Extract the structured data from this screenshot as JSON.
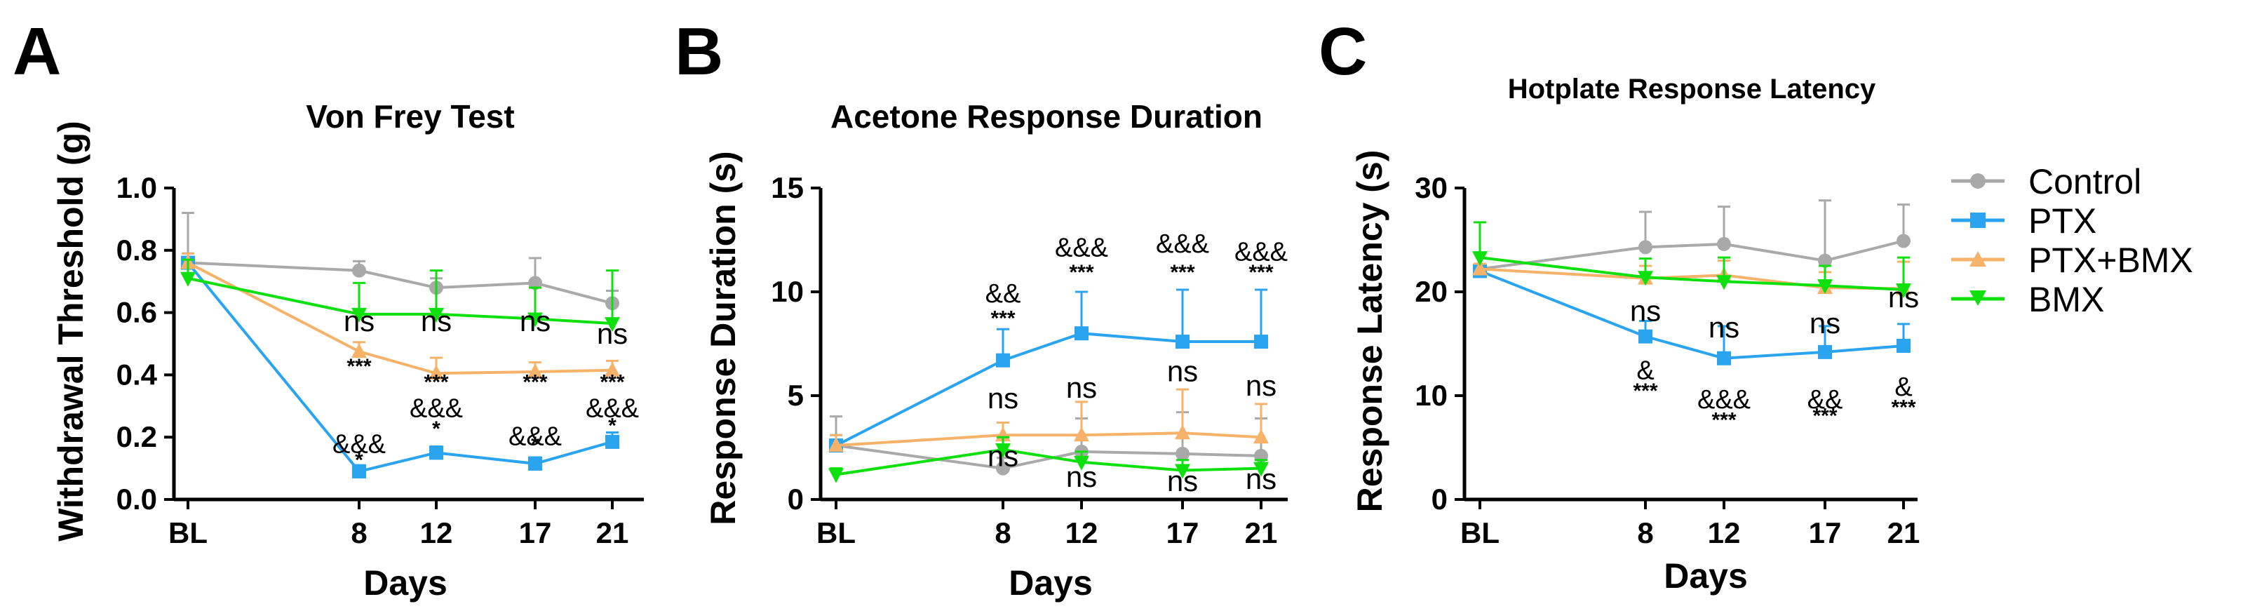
{
  "legend": {
    "entries": [
      {
        "name": "Control",
        "color": "#a9a9a9",
        "marker": "circle"
      },
      {
        "name": "PTX",
        "color": "#2ba4f0",
        "marker": "square"
      },
      {
        "name": "PTX+BMX",
        "color": "#f7b26a",
        "marker": "triangle-up"
      },
      {
        "name": "BMX",
        "color": "#0de00d",
        "marker": "triangle-down"
      }
    ]
  },
  "chart_data": [
    {
      "panel": "A",
      "type": "line",
      "title": "Von Frey Test",
      "xlabel": "Days",
      "ylabel": "Withdrawal Threshold (g)",
      "x": [
        0,
        8,
        12,
        17,
        21
      ],
      "x_tick_labels": [
        "BL",
        "8",
        "12",
        "17",
        "21"
      ],
      "ylim": [
        0,
        1.0
      ],
      "y_ticks": [
        0.0,
        0.2,
        0.4,
        0.6,
        0.8,
        1.0
      ],
      "y_tick_labels": [
        "0.0",
        "0.2",
        "0.4",
        "0.6",
        "0.8",
        "1.0"
      ],
      "series": [
        {
          "name": "Control",
          "values": [
            0.76,
            0.735,
            0.68,
            0.695,
            0.63
          ],
          "errors": [
            0.16,
            0.03,
            0.03,
            0.08,
            0.04
          ]
        },
        {
          "name": "PTX",
          "values": [
            0.76,
            0.09,
            0.15,
            0.115,
            0.185
          ],
          "errors": [
            0.03,
            0.02,
            0.02,
            0.02,
            0.03
          ]
        },
        {
          "name": "PTX+BMX",
          "values": [
            0.76,
            0.475,
            0.405,
            0.41,
            0.415
          ],
          "errors": [
            0.03,
            0.03,
            0.05,
            0.03,
            0.03
          ]
        },
        {
          "name": "BMX",
          "values": [
            0.71,
            0.595,
            0.595,
            0.58,
            0.565
          ],
          "errors": [
            0.06,
            0.1,
            0.14,
            0.1,
            0.17
          ]
        }
      ],
      "annotations": [
        {
          "text": "ns",
          "x": 8,
          "y": 0.54,
          "size": "l"
        },
        {
          "text": "ns",
          "x": 12,
          "y": 0.54,
          "size": "l"
        },
        {
          "text": "ns",
          "x": 17,
          "y": 0.54,
          "size": "l"
        },
        {
          "text": "ns",
          "x": 21,
          "y": 0.5,
          "size": "l"
        },
        {
          "text": "***",
          "x": 8,
          "y": 0.405,
          "size": "s"
        },
        {
          "text": "***",
          "x": 12,
          "y": 0.355,
          "size": "s"
        },
        {
          "text": "***",
          "x": 17,
          "y": 0.355,
          "size": "s"
        },
        {
          "text": "***",
          "x": 21,
          "y": 0.355,
          "size": "s"
        },
        {
          "text": "&&&",
          "x": 12,
          "y": 0.265,
          "size": "m"
        },
        {
          "text": "&&&",
          "x": 21,
          "y": 0.265,
          "size": "m"
        },
        {
          "text": "&&&",
          "x": 8,
          "y": 0.15,
          "size": "m"
        },
        {
          "text": "&&&",
          "x": 17,
          "y": 0.175,
          "size": "m"
        },
        {
          "text": "*",
          "x": 8,
          "y": 0.105,
          "size": "s"
        },
        {
          "text": "*",
          "x": 12,
          "y": 0.205,
          "size": "s"
        },
        {
          "text": "*",
          "x": 17,
          "y": 0.155,
          "size": "s"
        },
        {
          "text": "*",
          "x": 21,
          "y": 0.215,
          "size": "s"
        }
      ]
    },
    {
      "panel": "B",
      "type": "line",
      "title": "Acetone Response Duration",
      "xlabel": "Days",
      "ylabel": "Response Duration (s)",
      "x": [
        0,
        8,
        12,
        17,
        21
      ],
      "x_tick_labels": [
        "BL",
        "8",
        "12",
        "17",
        "21"
      ],
      "ylim": [
        0,
        15
      ],
      "y_ticks": [
        0,
        5,
        10,
        15
      ],
      "y_tick_labels": [
        "0",
        "5",
        "10",
        "15"
      ],
      "series": [
        {
          "name": "Control",
          "values": [
            2.6,
            1.5,
            2.3,
            2.2,
            2.1
          ],
          "errors": [
            1.4,
            0.5,
            1.6,
            2.0,
            1.8
          ]
        },
        {
          "name": "PTX",
          "values": [
            2.6,
            6.7,
            8.0,
            7.6,
            7.6
          ],
          "errors": [
            0.5,
            1.5,
            2.0,
            2.5,
            2.5
          ]
        },
        {
          "name": "PTX+BMX",
          "values": [
            2.6,
            3.1,
            3.1,
            3.2,
            3.0
          ],
          "errors": [
            0.5,
            0.6,
            1.6,
            2.1,
            1.6
          ]
        },
        {
          "name": "BMX",
          "values": [
            1.2,
            2.4,
            1.8,
            1.4,
            1.5
          ],
          "errors": [
            0.3,
            0.6,
            0.5,
            0.5,
            0.4
          ]
        }
      ],
      "annotations": [
        {
          "text": "&&",
          "x": 8,
          "y": 9.5,
          "size": "m"
        },
        {
          "text": "***",
          "x": 8,
          "y": 8.4,
          "size": "s"
        },
        {
          "text": "&&&",
          "x": 12,
          "y": 11.7,
          "size": "m"
        },
        {
          "text": "***",
          "x": 12,
          "y": 10.6,
          "size": "s"
        },
        {
          "text": "&&&",
          "x": 17,
          "y": 11.9,
          "size": "m"
        },
        {
          "text": "***",
          "x": 17,
          "y": 10.6,
          "size": "s"
        },
        {
          "text": "&&&",
          "x": 21,
          "y": 11.5,
          "size": "m"
        },
        {
          "text": "***",
          "x": 21,
          "y": 10.6,
          "size": "s"
        },
        {
          "text": "ns",
          "x": 8,
          "y": 4.4,
          "size": "l"
        },
        {
          "text": "ns",
          "x": 12,
          "y": 4.9,
          "size": "l"
        },
        {
          "text": "ns",
          "x": 17,
          "y": 5.7,
          "size": "l"
        },
        {
          "text": "ns",
          "x": 21,
          "y": 5.0,
          "size": "l"
        },
        {
          "text": "ns",
          "x": 8,
          "y": 1.6,
          "size": "l"
        },
        {
          "text": "ns",
          "x": 12,
          "y": 0.6,
          "size": "l"
        },
        {
          "text": "ns",
          "x": 17,
          "y": 0.4,
          "size": "l"
        },
        {
          "text": "ns",
          "x": 21,
          "y": 0.5,
          "size": "l"
        }
      ]
    },
    {
      "panel": "C",
      "type": "line",
      "title": "Hotplate Response Latency",
      "xlabel": "Days",
      "ylabel": "Response Latency (s)",
      "x": [
        0,
        8,
        12,
        17,
        21
      ],
      "x_tick_labels": [
        "BL",
        "8",
        "12",
        "17",
        "21"
      ],
      "ylim": [
        0,
        30
      ],
      "y_ticks": [
        0,
        10,
        20,
        30
      ],
      "y_tick_labels": [
        "0",
        "10",
        "20",
        "30"
      ],
      "series": [
        {
          "name": "Control",
          "values": [
            22.2,
            24.3,
            24.6,
            23.0,
            24.9
          ],
          "errors": [
            0.5,
            3.4,
            3.6,
            5.8,
            3.5
          ]
        },
        {
          "name": "PTX",
          "values": [
            22.0,
            15.7,
            13.6,
            14.2,
            14.8
          ],
          "errors": [
            0.5,
            1.5,
            3.1,
            2.5,
            2.1
          ]
        },
        {
          "name": "PTX+BMX",
          "values": [
            22.2,
            21.3,
            21.6,
            20.4,
            20.3
          ],
          "errors": [
            0.5,
            1.2,
            1.4,
            1.5,
            2.6
          ]
        },
        {
          "name": "BMX",
          "values": [
            23.3,
            21.4,
            21.0,
            20.6,
            20.2
          ],
          "errors": [
            3.4,
            1.8,
            2.3,
            1.9,
            3.1
          ]
        }
      ],
      "annotations": [
        {
          "text": "ns",
          "x": 8,
          "y": 17.2,
          "size": "l"
        },
        {
          "text": "ns",
          "x": 12,
          "y": 15.6,
          "size": "l"
        },
        {
          "text": "ns",
          "x": 17,
          "y": 16.0,
          "size": "l"
        },
        {
          "text": "ns",
          "x": 21,
          "y": 18.5,
          "size": "l"
        },
        {
          "text": "&",
          "x": 8,
          "y": 11.6,
          "size": "m"
        },
        {
          "text": "***",
          "x": 8,
          "y": 9.8,
          "size": "s"
        },
        {
          "text": "&&&",
          "x": 12,
          "y": 8.8,
          "size": "m"
        },
        {
          "text": "***",
          "x": 12,
          "y": 7.0,
          "size": "s"
        },
        {
          "text": "&&",
          "x": 17,
          "y": 8.8,
          "size": "m"
        },
        {
          "text": "***",
          "x": 17,
          "y": 7.4,
          "size": "s"
        },
        {
          "text": "&",
          "x": 21,
          "y": 10.0,
          "size": "m"
        },
        {
          "text": "***",
          "x": 21,
          "y": 8.2,
          "size": "s"
        }
      ]
    }
  ]
}
